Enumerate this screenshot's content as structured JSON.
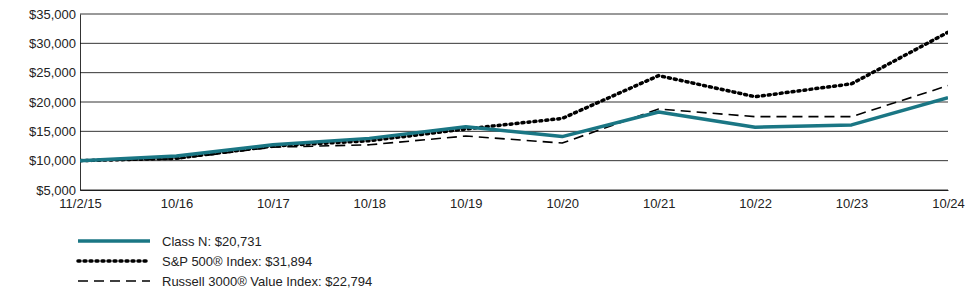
{
  "chart_data": {
    "type": "line",
    "x": [
      "11/2/15",
      "10/16",
      "10/17",
      "10/18",
      "10/19",
      "10/20",
      "10/21",
      "10/22",
      "10/23",
      "10/24"
    ],
    "series": [
      {
        "name": "Class N: $20,731",
        "color": "#1a7684",
        "line_style": "solid",
        "values": [
          10000,
          10800,
          12700,
          13800,
          15800,
          14100,
          18300,
          15700,
          16100,
          20731
        ]
      },
      {
        "name": "S&P 500® Index: $31,894",
        "color": "#000000",
        "line_style": "dotted",
        "values": [
          10000,
          10400,
          12500,
          13400,
          15400,
          17200,
          24500,
          20900,
          23100,
          31894
        ]
      },
      {
        "name": "Russell 3000® Value Index: $22,794",
        "color": "#000000",
        "line_style": "dashed",
        "values": [
          10000,
          10300,
          12300,
          12700,
          14200,
          13000,
          18800,
          17500,
          17500,
          22794
        ]
      }
    ],
    "ylim": [
      5000,
      35000
    ],
    "yticks": [
      {
        "value": 5000,
        "label": "$5,000"
      },
      {
        "value": 10000,
        "label": "$10,000"
      },
      {
        "value": 15000,
        "label": "$15,000"
      },
      {
        "value": 20000,
        "label": "$20,000"
      },
      {
        "value": 25000,
        "label": "$25,000"
      },
      {
        "value": 30000,
        "label": "$30,000"
      },
      {
        "value": 35000,
        "label": "$35,000"
      }
    ],
    "grid": true,
    "legend": "bottom-left"
  }
}
